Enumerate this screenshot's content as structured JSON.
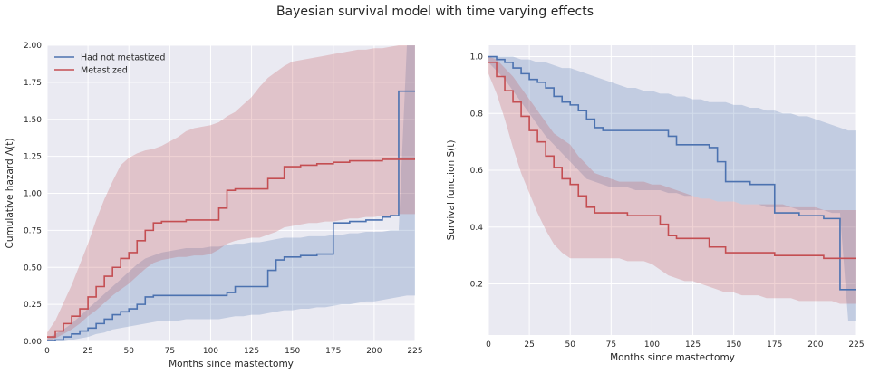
{
  "suptitle": "Bayesian survival model with time varying effects",
  "colors": {
    "blue": "#4c72b0",
    "red": "#c44e52",
    "axes_bg": "#eaeaf2",
    "grid": "#ffffff"
  },
  "chart_data": [
    {
      "type": "line",
      "step": true,
      "xlabel": "Months since mastectomy",
      "ylabel": "Cumulative hazard Λ(t)",
      "xlim": [
        0,
        225
      ],
      "ylim": [
        0,
        2.0
      ],
      "xticks": [
        0,
        25,
        50,
        75,
        100,
        125,
        150,
        175,
        200,
        225
      ],
      "yticks": [
        0.0,
        0.25,
        0.5,
        0.75,
        1.0,
        1.25,
        1.5,
        1.75,
        2.0
      ],
      "ytick_labels": [
        "0.00",
        "0.25",
        "0.50",
        "0.75",
        "1.00",
        "1.25",
        "1.50",
        "1.75",
        "2.00"
      ],
      "grid": true,
      "legend_position": "top-left",
      "series": [
        {
          "name": "Had not metastized",
          "color": "#4c72b0",
          "x": [
            0,
            5,
            10,
            15,
            20,
            25,
            30,
            35,
            40,
            45,
            50,
            55,
            60,
            65,
            70,
            75,
            80,
            85,
            90,
            95,
            100,
            105,
            110,
            115,
            120,
            125,
            130,
            135,
            140,
            145,
            150,
            155,
            160,
            165,
            170,
            175,
            180,
            185,
            190,
            195,
            200,
            205,
            210,
            215,
            220,
            225
          ],
          "y": [
            0.0,
            0.01,
            0.03,
            0.05,
            0.07,
            0.09,
            0.12,
            0.15,
            0.18,
            0.2,
            0.22,
            0.25,
            0.3,
            0.31,
            0.31,
            0.31,
            0.31,
            0.31,
            0.31,
            0.31,
            0.31,
            0.31,
            0.33,
            0.37,
            0.37,
            0.37,
            0.37,
            0.48,
            0.55,
            0.57,
            0.57,
            0.58,
            0.58,
            0.59,
            0.59,
            0.8,
            0.8,
            0.81,
            0.81,
            0.82,
            0.82,
            0.84,
            0.85,
            1.69,
            1.69,
            1.69
          ],
          "lower": [
            0.0,
            0.0,
            0.0,
            0.01,
            0.02,
            0.03,
            0.05,
            0.06,
            0.08,
            0.09,
            0.1,
            0.11,
            0.12,
            0.13,
            0.14,
            0.14,
            0.14,
            0.15,
            0.15,
            0.15,
            0.15,
            0.15,
            0.16,
            0.17,
            0.17,
            0.18,
            0.18,
            0.19,
            0.2,
            0.21,
            0.21,
            0.22,
            0.22,
            0.23,
            0.23,
            0.24,
            0.25,
            0.25,
            0.26,
            0.27,
            0.27,
            0.28,
            0.29,
            0.3,
            0.31,
            0.31
          ],
          "upper": [
            0.02,
            0.05,
            0.08,
            0.12,
            0.17,
            0.22,
            0.27,
            0.32,
            0.37,
            0.42,
            0.47,
            0.52,
            0.56,
            0.58,
            0.6,
            0.61,
            0.62,
            0.63,
            0.63,
            0.63,
            0.64,
            0.64,
            0.65,
            0.66,
            0.66,
            0.67,
            0.67,
            0.68,
            0.69,
            0.7,
            0.7,
            0.7,
            0.71,
            0.71,
            0.71,
            0.72,
            0.72,
            0.73,
            0.73,
            0.74,
            0.74,
            0.74,
            0.75,
            0.75,
            2.0,
            2.0
          ]
        },
        {
          "name": "Metastized",
          "color": "#c44e52",
          "x": [
            0,
            5,
            10,
            15,
            20,
            25,
            30,
            35,
            40,
            45,
            50,
            55,
            60,
            65,
            70,
            75,
            80,
            85,
            90,
            95,
            100,
            105,
            110,
            115,
            120,
            125,
            130,
            135,
            140,
            145,
            150,
            155,
            160,
            165,
            170,
            175,
            180,
            185,
            190,
            195,
            200,
            205,
            210,
            215,
            220,
            225
          ],
          "y": [
            0.03,
            0.07,
            0.12,
            0.17,
            0.22,
            0.3,
            0.37,
            0.44,
            0.5,
            0.56,
            0.6,
            0.68,
            0.75,
            0.8,
            0.81,
            0.81,
            0.81,
            0.82,
            0.82,
            0.82,
            0.82,
            0.9,
            1.02,
            1.03,
            1.03,
            1.03,
            1.03,
            1.1,
            1.1,
            1.18,
            1.18,
            1.19,
            1.19,
            1.2,
            1.2,
            1.21,
            1.21,
            1.22,
            1.22,
            1.22,
            1.22,
            1.23,
            1.23,
            1.23,
            1.23,
            1.24
          ],
          "lower": [
            0.0,
            0.02,
            0.05,
            0.08,
            0.12,
            0.17,
            0.21,
            0.26,
            0.31,
            0.35,
            0.39,
            0.44,
            0.49,
            0.53,
            0.55,
            0.56,
            0.57,
            0.57,
            0.58,
            0.58,
            0.59,
            0.62,
            0.66,
            0.68,
            0.69,
            0.7,
            0.7,
            0.72,
            0.74,
            0.77,
            0.78,
            0.79,
            0.8,
            0.8,
            0.81,
            0.81,
            0.82,
            0.83,
            0.83,
            0.84,
            0.84,
            0.85,
            0.85,
            0.86,
            0.86,
            0.86
          ],
          "upper": [
            0.06,
            0.14,
            0.26,
            0.38,
            0.52,
            0.66,
            0.82,
            0.96,
            1.08,
            1.19,
            1.24,
            1.27,
            1.29,
            1.3,
            1.32,
            1.35,
            1.38,
            1.42,
            1.44,
            1.45,
            1.46,
            1.48,
            1.52,
            1.55,
            1.6,
            1.65,
            1.72,
            1.78,
            1.82,
            1.86,
            1.89,
            1.9,
            1.91,
            1.92,
            1.93,
            1.94,
            1.95,
            1.96,
            1.97,
            1.97,
            1.98,
            1.98,
            1.99,
            2.0,
            2.0,
            2.0
          ]
        }
      ]
    },
    {
      "type": "line",
      "step": true,
      "xlabel": "Months since mastectomy",
      "ylabel": "Survival function S(t)",
      "xlim": [
        0,
        225
      ],
      "ylim": [
        0.02,
        1.04
      ],
      "xticks": [
        0,
        25,
        50,
        75,
        100,
        125,
        150,
        175,
        200,
        225
      ],
      "yticks": [
        0.2,
        0.4,
        0.6,
        0.8,
        1.0
      ],
      "ytick_labels": [
        "0.2",
        "0.4",
        "0.6",
        "0.8",
        "1.0"
      ],
      "grid": true,
      "series": [
        {
          "name": "Had not metastized",
          "color": "#4c72b0",
          "x": [
            0,
            5,
            10,
            15,
            20,
            25,
            30,
            35,
            40,
            45,
            50,
            55,
            60,
            65,
            70,
            75,
            80,
            85,
            90,
            95,
            100,
            105,
            110,
            115,
            120,
            125,
            130,
            135,
            140,
            145,
            150,
            155,
            160,
            165,
            170,
            175,
            180,
            185,
            190,
            195,
            200,
            205,
            210,
            215,
            220,
            225
          ],
          "y": [
            1.0,
            0.99,
            0.98,
            0.96,
            0.94,
            0.92,
            0.91,
            0.89,
            0.86,
            0.84,
            0.83,
            0.81,
            0.78,
            0.75,
            0.74,
            0.74,
            0.74,
            0.74,
            0.74,
            0.74,
            0.74,
            0.74,
            0.72,
            0.69,
            0.69,
            0.69,
            0.69,
            0.68,
            0.63,
            0.56,
            0.56,
            0.56,
            0.55,
            0.55,
            0.55,
            0.45,
            0.45,
            0.45,
            0.44,
            0.44,
            0.44,
            0.43,
            0.43,
            0.18,
            0.18,
            0.18
          ],
          "lower": [
            0.98,
            0.95,
            0.92,
            0.88,
            0.84,
            0.8,
            0.76,
            0.72,
            0.69,
            0.66,
            0.63,
            0.6,
            0.57,
            0.56,
            0.55,
            0.54,
            0.54,
            0.54,
            0.53,
            0.53,
            0.53,
            0.53,
            0.52,
            0.52,
            0.51,
            0.51,
            0.5,
            0.5,
            0.49,
            0.49,
            0.49,
            0.48,
            0.48,
            0.48,
            0.47,
            0.47,
            0.47,
            0.47,
            0.46,
            0.46,
            0.46,
            0.46,
            0.45,
            0.45,
            0.07,
            0.07
          ],
          "upper": [
            1.0,
            1.0,
            1.0,
            1.0,
            0.99,
            0.99,
            0.98,
            0.98,
            0.97,
            0.96,
            0.96,
            0.95,
            0.94,
            0.93,
            0.92,
            0.91,
            0.9,
            0.89,
            0.89,
            0.88,
            0.88,
            0.87,
            0.87,
            0.86,
            0.86,
            0.85,
            0.85,
            0.84,
            0.84,
            0.84,
            0.83,
            0.83,
            0.82,
            0.82,
            0.81,
            0.81,
            0.8,
            0.8,
            0.79,
            0.79,
            0.78,
            0.77,
            0.76,
            0.75,
            0.74,
            0.74
          ]
        },
        {
          "name": "Metastized",
          "color": "#c44e52",
          "x": [
            0,
            5,
            10,
            15,
            20,
            25,
            30,
            35,
            40,
            45,
            50,
            55,
            60,
            65,
            70,
            75,
            80,
            85,
            90,
            95,
            100,
            105,
            110,
            115,
            120,
            125,
            130,
            135,
            140,
            145,
            150,
            155,
            160,
            165,
            170,
            175,
            180,
            185,
            190,
            195,
            200,
            205,
            210,
            215,
            220,
            225
          ],
          "y": [
            0.98,
            0.93,
            0.88,
            0.84,
            0.79,
            0.74,
            0.7,
            0.65,
            0.61,
            0.57,
            0.55,
            0.51,
            0.47,
            0.45,
            0.45,
            0.45,
            0.45,
            0.44,
            0.44,
            0.44,
            0.44,
            0.41,
            0.37,
            0.36,
            0.36,
            0.36,
            0.36,
            0.33,
            0.33,
            0.31,
            0.31,
            0.31,
            0.31,
            0.31,
            0.31,
            0.3,
            0.3,
            0.3,
            0.3,
            0.3,
            0.3,
            0.29,
            0.29,
            0.29,
            0.29,
            0.29
          ],
          "lower": [
            0.94,
            0.87,
            0.78,
            0.68,
            0.59,
            0.52,
            0.45,
            0.39,
            0.34,
            0.31,
            0.29,
            0.29,
            0.29,
            0.29,
            0.29,
            0.29,
            0.29,
            0.28,
            0.28,
            0.28,
            0.27,
            0.25,
            0.23,
            0.22,
            0.21,
            0.21,
            0.2,
            0.19,
            0.18,
            0.17,
            0.17,
            0.16,
            0.16,
            0.16,
            0.15,
            0.15,
            0.15,
            0.15,
            0.14,
            0.14,
            0.14,
            0.14,
            0.14,
            0.13,
            0.13,
            0.13
          ],
          "upper": [
            1.0,
            0.99,
            0.96,
            0.93,
            0.89,
            0.85,
            0.81,
            0.77,
            0.73,
            0.71,
            0.69,
            0.65,
            0.62,
            0.59,
            0.58,
            0.57,
            0.56,
            0.56,
            0.56,
            0.56,
            0.55,
            0.55,
            0.54,
            0.53,
            0.52,
            0.51,
            0.5,
            0.5,
            0.49,
            0.49,
            0.49,
            0.48,
            0.48,
            0.48,
            0.48,
            0.48,
            0.48,
            0.47,
            0.47,
            0.47,
            0.47,
            0.46,
            0.46,
            0.46,
            0.46,
            0.46
          ]
        }
      ]
    }
  ]
}
